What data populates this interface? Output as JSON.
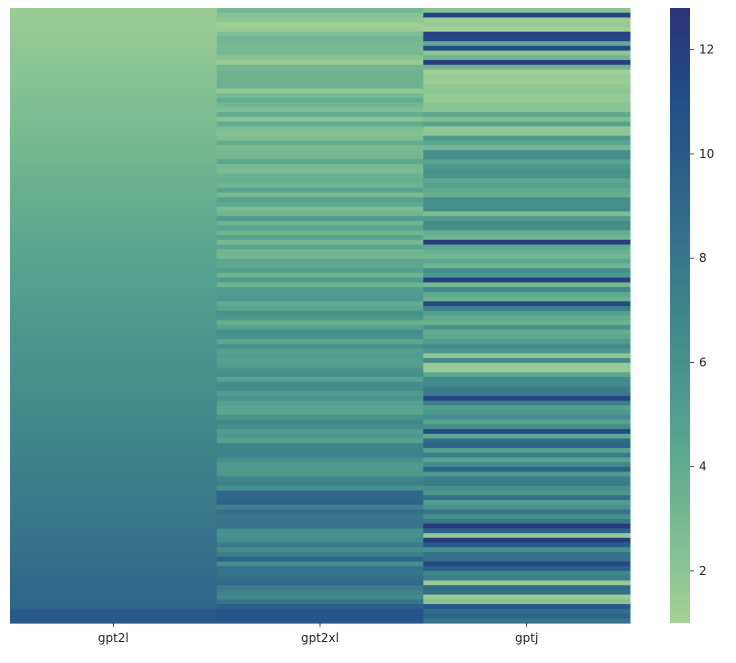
{
  "chart_data": {
    "type": "heatmap",
    "title": "",
    "xlabel": "",
    "ylabel": "",
    "columns": [
      "gpt2l",
      "gpt2xl",
      "gptj"
    ],
    "row_count": 130,
    "column_profiles": {
      "gpt2l": "smoothly increasing from about 1.5 at the top to about 9.5 at the bottom",
      "gpt2xl": "noisy, generally increasing from about 2 at top to about 9 at bottom",
      "gptj": "very noisy, values roughly between 1 and 12.7, generally increasing downward"
    },
    "colorbar": {
      "min": 1.0,
      "max": 12.8,
      "ticks": [
        2,
        4,
        6,
        8,
        10,
        12
      ],
      "colormap": "crest",
      "colors": [
        "#a5d196",
        "#7cbd92",
        "#5aa68f",
        "#46908c",
        "#3a7a8a",
        "#2c6389",
        "#224c87",
        "#2b3379"
      ]
    }
  }
}
